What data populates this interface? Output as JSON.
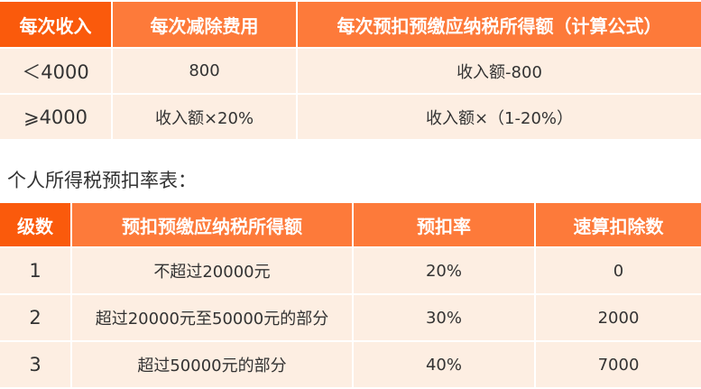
{
  "table1": {
    "headers": [
      "每次收入",
      "每次减除费用",
      "每次预扣预缴应纳税所得额（计算公式）"
    ],
    "rows": [
      [
        "＜4000",
        "800",
        "收入额-800"
      ],
      [
        "⩾4000",
        "收入额×20%",
        "收入额×（1-20%）"
      ]
    ]
  },
  "subtitle": "个人所得税预扣率表：",
  "table2": {
    "headers": [
      "级数",
      "预扣预缴应纳税所得额",
      "预扣率",
      "速算扣除数"
    ],
    "rows": [
      [
        "1",
        "不超过20000元",
        "20%",
        "0"
      ],
      [
        "2",
        "超过20000元至50000元的部分",
        "30%",
        "2000"
      ],
      [
        "3",
        "超过50000元的部分",
        "40%",
        "7000"
      ]
    ]
  },
  "colors": {
    "header_primary": "#fa5a0c",
    "header": "#fd7a3a",
    "row": "#fdeee2"
  }
}
